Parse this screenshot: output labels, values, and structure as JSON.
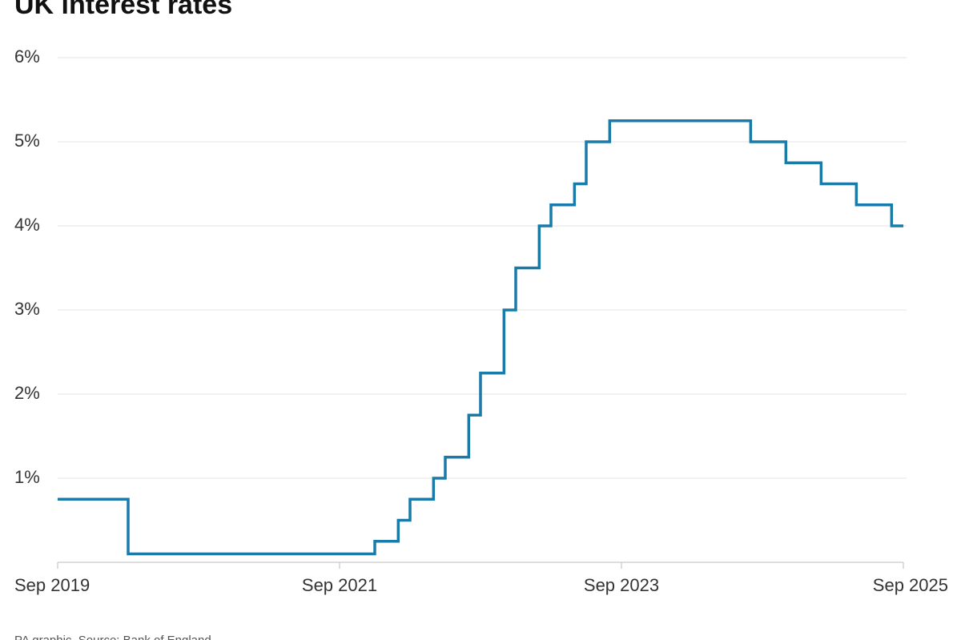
{
  "chart_data": {
    "type": "line",
    "title": "UK interest rates",
    "source": "PA graphic. Source: Bank of England",
    "step": "post",
    "color": "#1a7aa8",
    "grid": true,
    "x": [
      "2019-09",
      "2020-03",
      "2021-12",
      "2022-02",
      "2022-03",
      "2022-05",
      "2022-06",
      "2022-08",
      "2022-09",
      "2022-11",
      "2022-12",
      "2023-02",
      "2023-03",
      "2023-05",
      "2023-06",
      "2023-08",
      "2024-08",
      "2024-11",
      "2025-02",
      "2025-05",
      "2025-08",
      "2025-09"
    ],
    "values": [
      0.75,
      0.1,
      0.25,
      0.5,
      0.75,
      1.0,
      1.25,
      1.75,
      2.25,
      3.0,
      3.5,
      4.0,
      4.25,
      4.5,
      5.0,
      5.25,
      5.0,
      4.75,
      4.5,
      4.25,
      4.0,
      4.0
    ],
    "xlim": [
      "2019-09",
      "2025-09"
    ],
    "xticks": [
      {
        "value": "2019-09",
        "label": "Sep 2019"
      },
      {
        "value": "2021-09",
        "label": "Sep 2021"
      },
      {
        "value": "2023-09",
        "label": "Sep 2023"
      },
      {
        "value": "2025-09",
        "label": "Sep 2025"
      }
    ],
    "ylim": [
      0,
      6
    ],
    "yticks": [
      {
        "value": 1,
        "label": "1%"
      },
      {
        "value": 2,
        "label": "2%"
      },
      {
        "value": 3,
        "label": "3%"
      },
      {
        "value": 4,
        "label": "4%"
      },
      {
        "value": 5,
        "label": "5%"
      },
      {
        "value": 6,
        "label": "6%"
      }
    ]
  }
}
